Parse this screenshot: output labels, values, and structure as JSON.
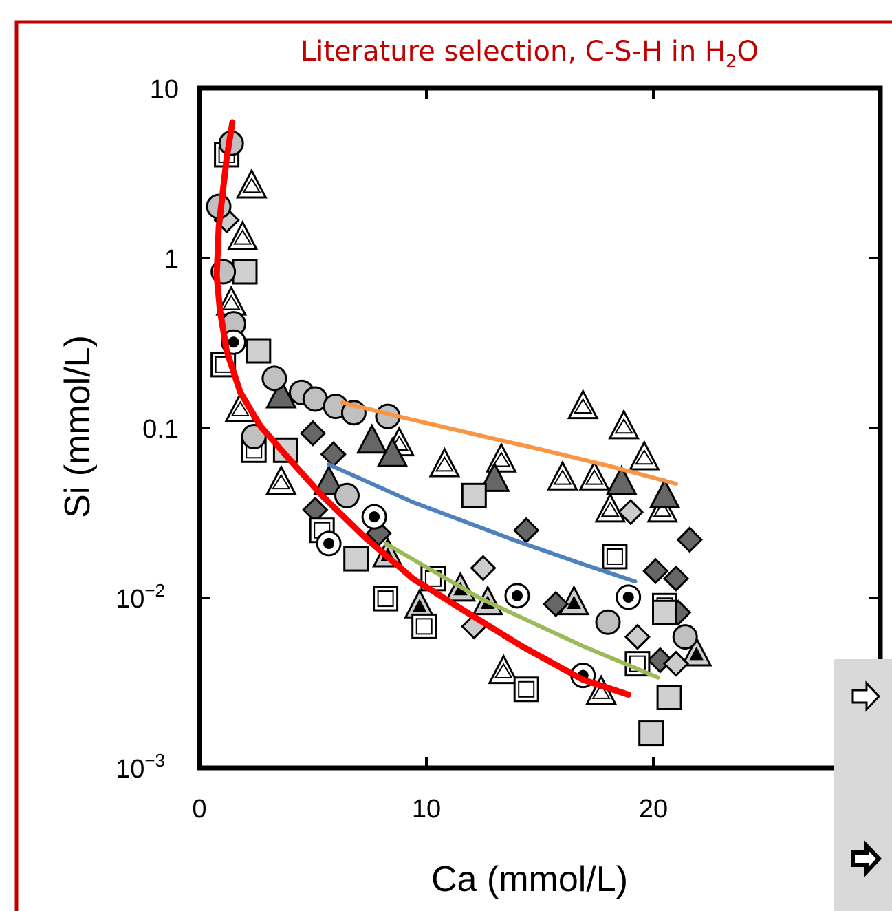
{
  "chart_data": {
    "type": "scatter",
    "title_parts": [
      "Literature selection, C-S-H in H",
      "2",
      "O"
    ],
    "title_color": "#c00000",
    "xlabel": "Ca (mmol/L)",
    "ylabel": "Si (mmol/L)",
    "xlim": [
      0,
      30
    ],
    "ylim": [
      0.001,
      10
    ],
    "yscale": "log",
    "xticks": [
      0,
      10,
      20
    ],
    "yticks": [
      10,
      1,
      0.1,
      {
        "value": 0.01,
        "label": "10",
        "exponent": "−2"
      },
      {
        "value": 0.001,
        "label": "10",
        "exponent": "−3"
      }
    ],
    "series": [
      {
        "type": "scatter",
        "marker": "triangle-open",
        "color": "#ffffff",
        "x": [
          2.3,
          1.9,
          1.4,
          1.8,
          16.9,
          18.7,
          19.6,
          10.8,
          13.3,
          16.0,
          17.4,
          18.1,
          8.8,
          13.4,
          17.7,
          3.6,
          20.4
        ],
        "values": [
          2.66,
          1.32,
          0.545,
          0.129,
          0.134,
          0.102,
          0.067,
          0.061,
          0.065,
          0.051,
          0.051,
          0.033,
          0.081,
          0.0037,
          0.0028,
          0.048,
          0.033
        ]
      },
      {
        "type": "scatter",
        "marker": "triangle-filled",
        "color": "#666666",
        "x": [
          3.6,
          7.6,
          8.5,
          13.0,
          18.6,
          20.5,
          5.7
        ],
        "values": [
          0.155,
          0.084,
          0.07,
          0.05,
          0.048,
          0.04,
          0.048
        ]
      },
      {
        "type": "scatter",
        "marker": "triangle-dot",
        "color": "#cccccc",
        "x": [
          9.7,
          11.5,
          12.7,
          16.5,
          21.9,
          8.3
        ],
        "values": [
          0.009,
          0.0113,
          0.0094,
          0.0094,
          0.0047,
          0.018
        ]
      },
      {
        "type": "scatter",
        "marker": "diamond",
        "color": "#666666",
        "x": [
          5.9,
          5.0,
          5.1,
          7.9,
          14.4,
          21.6,
          21.0,
          20.1,
          15.7,
          20.3,
          21.1
        ],
        "values": [
          0.07,
          0.093,
          0.033,
          0.024,
          0.025,
          0.022,
          0.013,
          0.0144,
          0.0092,
          0.0043,
          0.0082
        ]
      },
      {
        "type": "scatter",
        "marker": "diamond",
        "color": "#cccccc",
        "x": [
          1.2,
          12.5,
          12.1,
          19.0,
          19.3,
          21.0
        ],
        "values": [
          1.67,
          0.015,
          0.0068,
          0.032,
          0.0059,
          0.0041
        ]
      },
      {
        "type": "scatter",
        "marker": "square-open",
        "color": "#ffffff",
        "x": [
          1.2,
          1.05,
          2.4,
          5.4,
          8.2,
          9.9,
          10.3,
          14.4,
          18.3,
          19.3,
          20.5
        ],
        "values": [
          4.05,
          0.236,
          0.074,
          0.025,
          0.0099,
          0.0068,
          0.013,
          0.0029,
          0.0175,
          0.0041,
          0.009
        ]
      },
      {
        "type": "scatter",
        "marker": "square",
        "color": "#d0d0d0",
        "x": [
          2.0,
          2.6,
          3.8,
          12.1,
          6.9,
          20.7,
          19.9,
          20.5
        ],
        "values": [
          0.83,
          0.284,
          0.074,
          0.04,
          0.017,
          0.0026,
          0.0016,
          0.0082
        ]
      },
      {
        "type": "scatter",
        "marker": "circle",
        "color": "#c0c0c0",
        "x": [
          1.4,
          0.85,
          1.05,
          1.5,
          3.3,
          4.5,
          5.1,
          6.0,
          6.8,
          8.3,
          2.4,
          6.5,
          18.0,
          21.4
        ],
        "values": [
          4.73,
          2.01,
          0.83,
          0.41,
          0.196,
          0.162,
          0.148,
          0.134,
          0.123,
          0.117,
          0.089,
          0.04,
          0.0072,
          0.0059
        ]
      },
      {
        "type": "scatter",
        "marker": "circle-dot",
        "color": "#ffffff",
        "x": [
          1.5,
          5.7,
          14.0,
          18.9,
          16.9,
          7.7
        ],
        "values": [
          0.32,
          0.0209,
          0.0103,
          0.0101,
          0.0035,
          0.03
        ]
      },
      {
        "type": "line",
        "color": "#f79646",
        "x": [
          6.3,
          9,
          12.4,
          15,
          18,
          21
        ],
        "values": [
          0.141,
          0.115,
          0.09,
          0.075,
          0.06,
          0.047
        ]
      },
      {
        "type": "line",
        "color": "#4f81bd",
        "x": [
          5.7,
          9.4,
          13.9,
          16.9,
          19.2
        ],
        "values": [
          0.061,
          0.0366,
          0.0218,
          0.0158,
          0.0125
        ]
      },
      {
        "type": "line",
        "color": "#9bbb59",
        "x": [
          8.2,
          12.4,
          16.9,
          20.2
        ],
        "values": [
          0.0209,
          0.0099,
          0.0052,
          0.0034
        ]
      },
      {
        "type": "line",
        "color": "#ff0000",
        "x": [
          1.45,
          1.2,
          0.85,
          0.76,
          0.9,
          1.2,
          1.8,
          2.7,
          3.9,
          5.4,
          7.25,
          9.4,
          11.8,
          14.2,
          16.9,
          18.9
        ],
        "values": [
          6.28,
          3.87,
          1.52,
          0.79,
          0.497,
          0.284,
          0.162,
          0.102,
          0.067,
          0.04,
          0.023,
          0.013,
          0.0082,
          0.0052,
          0.0033,
          0.0027
        ]
      }
    ]
  }
}
